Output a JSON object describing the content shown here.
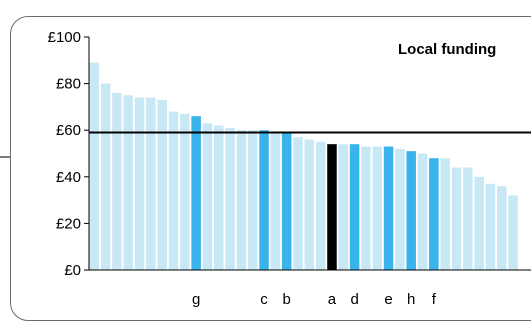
{
  "chart_data": {
    "type": "bar",
    "title": "Local funding",
    "xlabel": "",
    "ylabel": "",
    "ylim": [
      0,
      100
    ],
    "yticks": [
      "£0",
      "£20",
      "£40",
      "£60",
      "£80",
      "£100"
    ],
    "reference_line": 59,
    "colors": {
      "default": "#c8e8f6",
      "highlight": "#39b4ea",
      "selected": "#000000",
      "line": "#000000"
    },
    "bars": [
      {
        "value": 89,
        "label": "",
        "kind": "default"
      },
      {
        "value": 80,
        "label": "",
        "kind": "default"
      },
      {
        "value": 76,
        "label": "",
        "kind": "default"
      },
      {
        "value": 75,
        "label": "",
        "kind": "default"
      },
      {
        "value": 74,
        "label": "",
        "kind": "default"
      },
      {
        "value": 74,
        "label": "",
        "kind": "default"
      },
      {
        "value": 73,
        "label": "",
        "kind": "default"
      },
      {
        "value": 68,
        "label": "",
        "kind": "default"
      },
      {
        "value": 67,
        "label": "",
        "kind": "default"
      },
      {
        "value": 66,
        "label": "g",
        "kind": "highlight"
      },
      {
        "value": 63,
        "label": "",
        "kind": "default"
      },
      {
        "value": 62,
        "label": "",
        "kind": "default"
      },
      {
        "value": 61,
        "label": "",
        "kind": "default"
      },
      {
        "value": 60,
        "label": "",
        "kind": "default"
      },
      {
        "value": 60,
        "label": "",
        "kind": "default"
      },
      {
        "value": 60,
        "label": "c",
        "kind": "highlight"
      },
      {
        "value": 59,
        "label": "",
        "kind": "default"
      },
      {
        "value": 59,
        "label": "b",
        "kind": "highlight"
      },
      {
        "value": 57,
        "label": "",
        "kind": "default"
      },
      {
        "value": 56,
        "label": "",
        "kind": "default"
      },
      {
        "value": 55,
        "label": "",
        "kind": "default"
      },
      {
        "value": 54,
        "label": "a",
        "kind": "selected"
      },
      {
        "value": 54,
        "label": "",
        "kind": "default"
      },
      {
        "value": 54,
        "label": "d",
        "kind": "highlight"
      },
      {
        "value": 53,
        "label": "",
        "kind": "default"
      },
      {
        "value": 53,
        "label": "",
        "kind": "default"
      },
      {
        "value": 53,
        "label": "e",
        "kind": "highlight"
      },
      {
        "value": 52,
        "label": "",
        "kind": "default"
      },
      {
        "value": 51,
        "label": "h",
        "kind": "highlight"
      },
      {
        "value": 50,
        "label": "",
        "kind": "default"
      },
      {
        "value": 48,
        "label": "f",
        "kind": "highlight"
      },
      {
        "value": 48,
        "label": "",
        "kind": "default"
      },
      {
        "value": 44,
        "label": "",
        "kind": "default"
      },
      {
        "value": 44,
        "label": "",
        "kind": "default"
      },
      {
        "value": 40,
        "label": "",
        "kind": "default"
      },
      {
        "value": 37,
        "label": "",
        "kind": "default"
      },
      {
        "value": 36,
        "label": "",
        "kind": "default"
      },
      {
        "value": 32,
        "label": "",
        "kind": "default"
      }
    ]
  }
}
